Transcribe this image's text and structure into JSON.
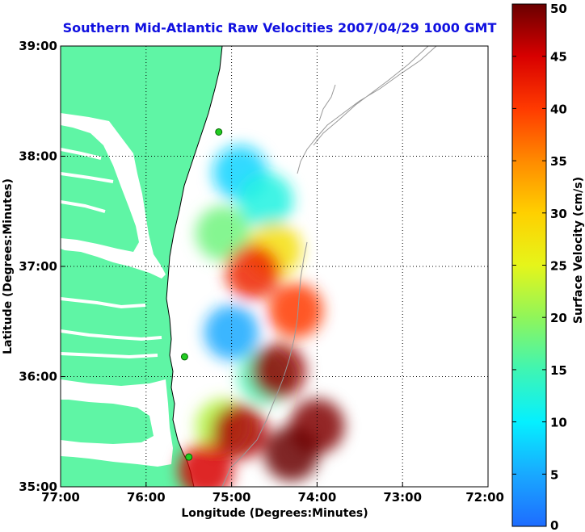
{
  "chart_data": {
    "type": "heatmap",
    "title": "Southern Mid-Atlantic Raw Velocities 2007/04/29 1000 GMT",
    "xlabel": "Longitude (Degrees:Minutes)",
    "ylabel": "Latitude (Degrees:Minutes)",
    "x_ticks": [
      "77:00",
      "76:00",
      "75:00",
      "74:00",
      "73:00",
      "72:00"
    ],
    "y_ticks": [
      "39:00",
      "38:00",
      "37:00",
      "36:00",
      "35:00"
    ],
    "xlim": [
      -77,
      -72
    ],
    "ylim": [
      35,
      39
    ],
    "grid": true,
    "colorbar": {
      "label": "Surface Velocity (cm/s)",
      "min": 0,
      "max": 50,
      "ticks": [
        "50",
        "45",
        "40",
        "35",
        "30",
        "25",
        "20",
        "15",
        "10",
        "5",
        "0"
      ]
    },
    "velocity_regions": [
      {
        "lon": -74.9,
        "lat": 37.85,
        "speed": 8
      },
      {
        "lon": -74.6,
        "lat": 37.6,
        "speed": 12
      },
      {
        "lon": -75.1,
        "lat": 37.3,
        "speed": 18
      },
      {
        "lon": -74.5,
        "lat": 37.15,
        "speed": 28
      },
      {
        "lon": -74.75,
        "lat": 36.95,
        "speed": 42
      },
      {
        "lon": -75.0,
        "lat": 36.4,
        "speed": 5
      },
      {
        "lon": -74.6,
        "lat": 36.0,
        "speed": 15
      },
      {
        "lon": -74.45,
        "lat": 36.05,
        "speed": 48
      },
      {
        "lon": -74.25,
        "lat": 36.6,
        "speed": 40
      },
      {
        "lon": -75.1,
        "lat": 35.55,
        "speed": 22
      },
      {
        "lon": -74.9,
        "lat": 35.5,
        "speed": 47
      },
      {
        "lon": -74.0,
        "lat": 35.55,
        "speed": 49
      },
      {
        "lon": -74.3,
        "lat": 35.3,
        "speed": 50
      },
      {
        "lon": -75.3,
        "lat": 35.15,
        "speed": 45
      }
    ],
    "stations": [
      {
        "lon": -75.15,
        "lat": 38.22
      },
      {
        "lon": -75.55,
        "lat": 36.18
      },
      {
        "lon": -75.5,
        "lat": 35.27
      }
    ]
  },
  "colors": {
    "land": "#5ff5a5",
    "title": "#1010e0",
    "station": "#22cc22",
    "background": "#ffffff"
  }
}
